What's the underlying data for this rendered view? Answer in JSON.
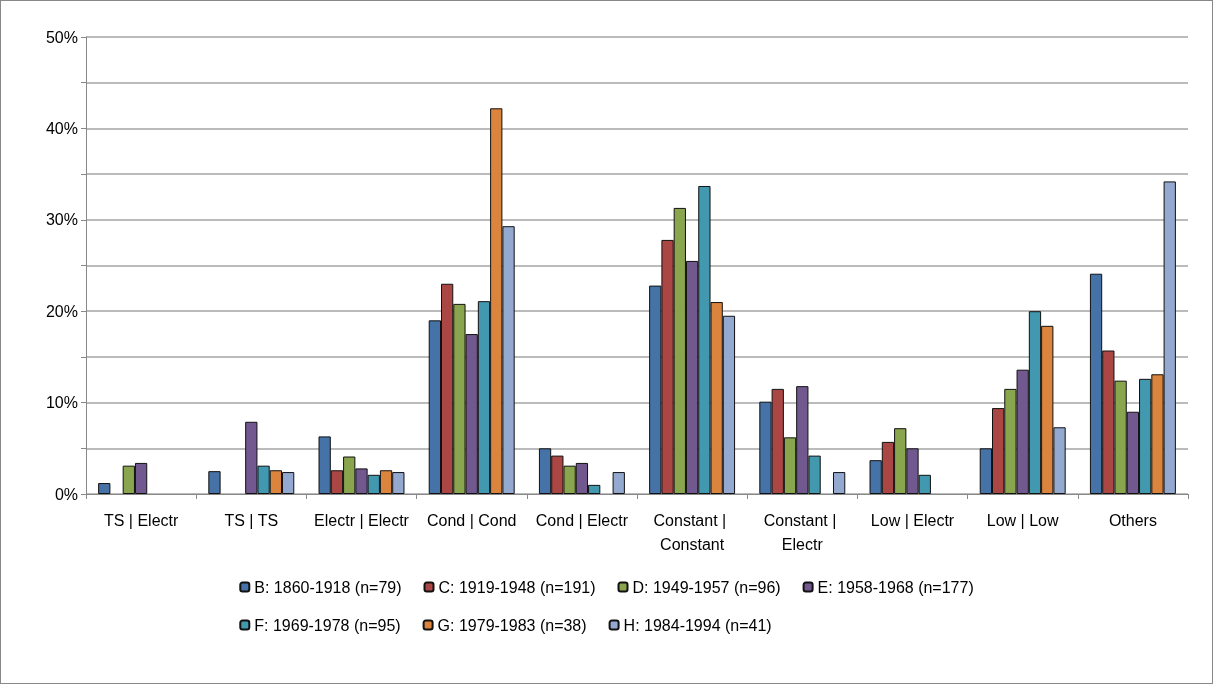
{
  "chart_data": {
    "type": "bar",
    "categories": [
      "TS | Electr",
      "TS | TS",
      "Electr | Electr",
      "Cond | Cond",
      "Cond | Electr",
      "Constant | Constant",
      "Constant | Electr",
      "Low | Electr",
      "Low | Low",
      "Others"
    ],
    "series": [
      {
        "name": "B: 1860-1918 (n=79)",
        "color": "#4572a7",
        "values": [
          1.2,
          2.5,
          6.3,
          19.0,
          5.0,
          22.8,
          10.1,
          3.7,
          5.0,
          24.1
        ]
      },
      {
        "name": "C: 1919-1948 (n=191)",
        "color": "#aa4643",
        "values": [
          null,
          null,
          2.6,
          23.0,
          4.2,
          27.8,
          11.5,
          5.7,
          9.4,
          15.7
        ]
      },
      {
        "name": "D: 1949-1957 (n=96)",
        "color": "#89a54e",
        "values": [
          3.1,
          null,
          4.1,
          20.8,
          3.1,
          31.3,
          6.2,
          7.2,
          11.5,
          12.4
        ]
      },
      {
        "name": "E: 1958-1968 (n=177)",
        "color": "#71588f",
        "values": [
          3.4,
          7.9,
          2.8,
          17.5,
          3.4,
          25.5,
          11.8,
          5.0,
          13.6,
          9.0
        ]
      },
      {
        "name": "F: 1969-1978 (n=95)",
        "color": "#4198af",
        "values": [
          null,
          3.1,
          2.1,
          21.1,
          1.0,
          33.7,
          4.2,
          2.1,
          20.0,
          12.6
        ]
      },
      {
        "name": "G: 1979-1983 (n=38)",
        "color": "#db843d",
        "values": [
          null,
          2.6,
          2.6,
          42.2,
          null,
          21.0,
          null,
          null,
          18.4,
          13.1
        ]
      },
      {
        "name": "H: 1984-1994 (n=41)",
        "color": "#93a9cf",
        "values": [
          null,
          2.4,
          2.4,
          29.3,
          2.4,
          19.5,
          2.4,
          null,
          7.3,
          34.2
        ]
      }
    ],
    "ylim": [
      0,
      50
    ],
    "yticks": [
      {
        "value": 0,
        "label": "0%"
      },
      {
        "value": 5,
        "label": null
      },
      {
        "value": 10,
        "label": "10%"
      },
      {
        "value": 15,
        "label": null
      },
      {
        "value": 20,
        "label": "20%"
      },
      {
        "value": 25,
        "label": null
      },
      {
        "value": 30,
        "label": "30%"
      },
      {
        "value": 35,
        "label": null
      },
      {
        "value": 40,
        "label": "40%"
      },
      {
        "value": 45,
        "label": null
      },
      {
        "value": 50,
        "label": "50%"
      }
    ],
    "grid": "y",
    "legend": "bottom"
  }
}
